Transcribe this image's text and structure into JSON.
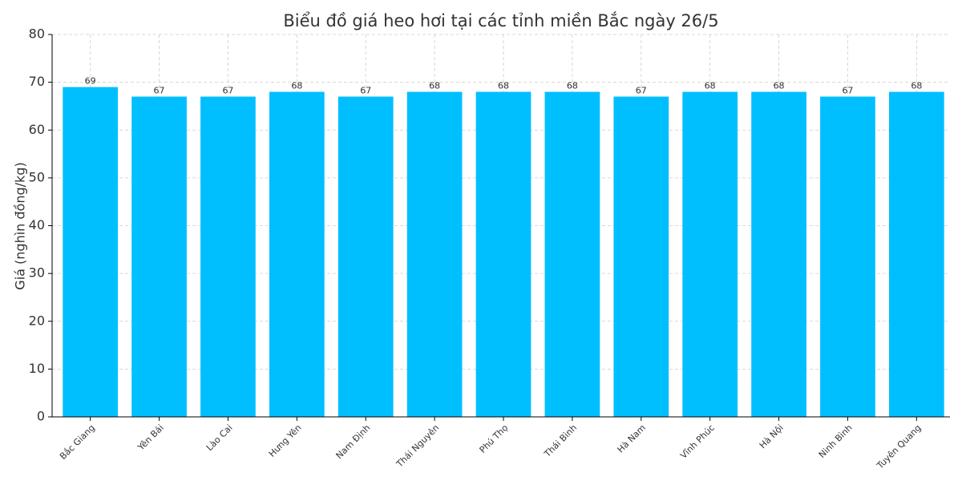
{
  "chart_data": {
    "type": "bar",
    "title": "Biểu đồ giá heo hơi tại các tỉnh miền Bắc ngày 26/5",
    "y_label": "Giá (nghìn đồng/kg)",
    "categories": [
      "Bắc Giang",
      "Yên Bái",
      "Lào Cai",
      "Hưng Yên",
      "Nam Định",
      "Thái Nguyên",
      "Phú Thọ",
      "Thái Bình",
      "Hà Nam",
      "Vĩnh Phúc",
      "Hà Nội",
      "Ninh Bình",
      "Tuyên Quang"
    ],
    "values": [
      69,
      67,
      67,
      68,
      67,
      68,
      68,
      68,
      67,
      68,
      68,
      67,
      68
    ],
    "color": "#00bfff",
    "ylim": [
      0,
      80
    ],
    "yticks": [
      0,
      10,
      20,
      30,
      40,
      50,
      60,
      70,
      80
    ],
    "grid": true
  }
}
